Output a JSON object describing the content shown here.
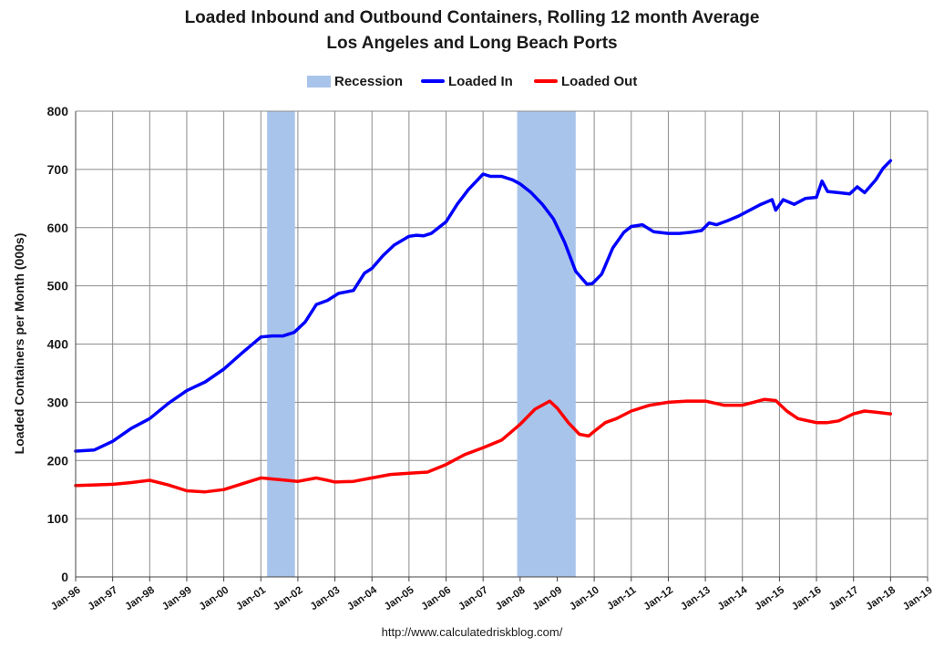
{
  "chart_data": {
    "type": "line",
    "title": "Loaded Inbound and Outbound Containers, Rolling 12 month Average",
    "subtitle": "Los Angeles and Long Beach Ports",
    "ylabel": "Loaded Containers per Month (000s)",
    "xlabel": "",
    "ylim": [
      0,
      800
    ],
    "yticks": [
      0,
      100,
      200,
      300,
      400,
      500,
      600,
      700,
      800
    ],
    "xlim": [
      1996.0,
      2019.0
    ],
    "xticks": [
      "Jan-96",
      "Jan-97",
      "Jan-98",
      "Jan-99",
      "Jan-00",
      "Jan-01",
      "Jan-02",
      "Jan-03",
      "Jan-04",
      "Jan-05",
      "Jan-06",
      "Jan-07",
      "Jan-08",
      "Jan-09",
      "Jan-10",
      "Jan-11",
      "Jan-12",
      "Jan-13",
      "Jan-14",
      "Jan-15",
      "Jan-16",
      "Jan-17",
      "Jan-18",
      "Jan-19"
    ],
    "grid": true,
    "legend_position": "top-center",
    "recessions": [
      {
        "start": 2001.17,
        "end": 2001.92
      },
      {
        "start": 2007.92,
        "end": 2009.5
      }
    ],
    "series": [
      {
        "name": "Loaded In",
        "color": "#0000ff",
        "x": [
          1996.0,
          1996.5,
          1997.0,
          1997.5,
          1998.0,
          1998.5,
          1999.0,
          1999.5,
          2000.0,
          2000.5,
          2001.0,
          2001.3,
          2001.6,
          2001.9,
          2002.2,
          2002.5,
          2002.8,
          2003.1,
          2003.5,
          2003.8,
          2004.0,
          2004.3,
          2004.6,
          2005.0,
          2005.2,
          2005.4,
          2005.6,
          2005.8,
          2006.0,
          2006.3,
          2006.6,
          2007.0,
          2007.2,
          2007.5,
          2007.8,
          2008.0,
          2008.3,
          2008.6,
          2008.9,
          2009.2,
          2009.5,
          2009.8,
          2009.95,
          2010.2,
          2010.5,
          2010.8,
          2011.0,
          2011.3,
          2011.6,
          2012.0,
          2012.3,
          2012.6,
          2012.9,
          2013.1,
          2013.3,
          2013.6,
          2013.9,
          2014.2,
          2014.5,
          2014.8,
          2014.9,
          2015.1,
          2015.4,
          2015.7,
          2016.0,
          2016.15,
          2016.3,
          2016.6,
          2016.9,
          2017.1,
          2017.3,
          2017.6,
          2017.8,
          2018.0
        ],
        "values": [
          216,
          218,
          233,
          255,
          272,
          298,
          320,
          335,
          357,
          385,
          412,
          414,
          414,
          420,
          438,
          468,
          475,
          487,
          492,
          522,
          530,
          552,
          570,
          585,
          587,
          586,
          590,
          600,
          610,
          640,
          665,
          692,
          688,
          688,
          682,
          675,
          660,
          640,
          615,
          575,
          525,
          503,
          504,
          520,
          565,
          592,
          602,
          605,
          593,
          590,
          590,
          592,
          595,
          608,
          605,
          612,
          620,
          630,
          640,
          648,
          630,
          648,
          640,
          650,
          652,
          680,
          662,
          660,
          658,
          670,
          660,
          682,
          702,
          715
        ]
      },
      {
        "name": "Loaded Out",
        "color": "#ff0000",
        "x": [
          1996.0,
          1996.5,
          1997.0,
          1997.5,
          1998.0,
          1998.5,
          1999.0,
          1999.5,
          2000.0,
          2000.5,
          2001.0,
          2001.5,
          2002.0,
          2002.5,
          2002.8,
          2003.0,
          2003.5,
          2004.0,
          2004.5,
          2005.0,
          2005.5,
          2006.0,
          2006.5,
          2007.0,
          2007.5,
          2008.0,
          2008.4,
          2008.8,
          2009.0,
          2009.3,
          2009.6,
          2009.85,
          2010.0,
          2010.3,
          2010.6,
          2011.0,
          2011.5,
          2012.0,
          2012.5,
          2013.0,
          2013.5,
          2014.0,
          2014.3,
          2014.6,
          2014.9,
          2015.2,
          2015.5,
          2016.0,
          2016.3,
          2016.6,
          2017.0,
          2017.3,
          2017.6,
          2018.0
        ],
        "values": [
          157,
          158,
          159,
          162,
          166,
          158,
          148,
          146,
          150,
          160,
          170,
          167,
          164,
          170,
          166,
          163,
          164,
          170,
          176,
          178,
          180,
          193,
          210,
          222,
          235,
          262,
          288,
          302,
          290,
          265,
          245,
          242,
          250,
          265,
          272,
          285,
          295,
          300,
          302,
          302,
          295,
          295,
          300,
          305,
          303,
          285,
          272,
          265,
          265,
          268,
          280,
          285,
          283,
          280
        ]
      }
    ]
  },
  "legend": {
    "recession_label": "Recession",
    "loaded_in_label": "Loaded In",
    "loaded_out_label": "Loaded Out",
    "recession_color": "#a9c4ea"
  },
  "source": "http://www.calculatedriskblog.com/"
}
